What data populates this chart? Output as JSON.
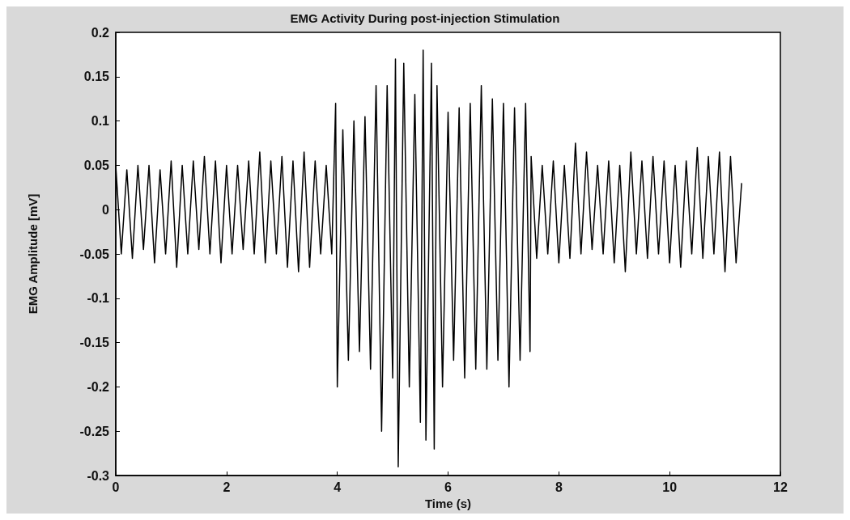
{
  "chart_data": {
    "type": "line",
    "title": "EMG Activity During post-injection Stimulation",
    "xlabel": "Time (s)",
    "ylabel": "EMG Amplitude [mV]",
    "xlim": [
      0,
      12
    ],
    "xticks": [
      0,
      2,
      4,
      6,
      8,
      10,
      12
    ],
    "ylim": [
      -0.3,
      0.2
    ],
    "yticks": [
      -0.3,
      -0.25,
      -0.2,
      -0.15,
      -0.1,
      -0.05,
      0,
      0.05,
      0.1,
      0.15,
      0.2
    ],
    "grid": false,
    "marker": "none",
    "line_style": "solid",
    "series": [
      {
        "color": "#000000",
        "x": [
          0,
          0.1,
          0.2,
          0.3,
          0.4,
          0.5,
          0.6,
          0.7,
          0.8,
          0.9,
          1.0,
          1.1,
          1.2,
          1.3,
          1.4,
          1.5,
          1.6,
          1.7,
          1.8,
          1.9,
          2.0,
          2.1,
          2.2,
          2.3,
          2.4,
          2.5,
          2.6,
          2.7,
          2.8,
          2.9,
          3.0,
          3.1,
          3.2,
          3.3,
          3.4,
          3.5,
          3.6,
          3.7,
          3.8,
          3.9,
          3.97,
          4.0,
          4.1,
          4.2,
          4.3,
          4.4,
          4.5,
          4.6,
          4.7,
          4.8,
          4.9,
          5.0,
          5.05,
          5.1,
          5.2,
          5.3,
          5.4,
          5.5,
          5.55,
          5.6,
          5.7,
          5.75,
          5.8,
          5.9,
          6.0,
          6.1,
          6.2,
          6.3,
          6.4,
          6.5,
          6.6,
          6.7,
          6.8,
          6.9,
          7.0,
          7.1,
          7.2,
          7.3,
          7.4,
          7.48,
          7.5,
          7.6,
          7.7,
          7.8,
          7.9,
          8.0,
          8.1,
          8.2,
          8.3,
          8.4,
          8.5,
          8.6,
          8.7,
          8.8,
          8.9,
          9.0,
          9.1,
          9.2,
          9.3,
          9.4,
          9.5,
          9.6,
          9.7,
          9.8,
          9.9,
          10.0,
          10.1,
          10.2,
          10.3,
          10.4,
          10.5,
          10.6,
          10.7,
          10.8,
          10.9,
          11.0,
          11.1,
          11.2,
          11.3
        ],
        "values": [
          0.05,
          -0.05,
          0.045,
          -0.055,
          0.05,
          -0.045,
          0.05,
          -0.06,
          0.045,
          -0.05,
          0.055,
          -0.065,
          0.05,
          -0.05,
          0.055,
          -0.045,
          0.06,
          -0.05,
          0.055,
          -0.06,
          0.05,
          -0.05,
          0.05,
          -0.045,
          0.055,
          -0.05,
          0.065,
          -0.06,
          0.055,
          -0.05,
          0.06,
          -0.065,
          0.055,
          -0.07,
          0.065,
          -0.065,
          0.055,
          -0.05,
          0.05,
          -0.05,
          0.12,
          -0.2,
          0.09,
          -0.17,
          0.1,
          -0.16,
          0.105,
          -0.18,
          0.14,
          -0.25,
          0.14,
          -0.19,
          0.17,
          -0.29,
          0.165,
          -0.2,
          0.13,
          -0.24,
          0.18,
          -0.26,
          0.165,
          -0.27,
          0.14,
          -0.2,
          0.11,
          -0.17,
          0.115,
          -0.19,
          0.12,
          -0.18,
          0.14,
          -0.18,
          0.125,
          -0.17,
          0.12,
          -0.2,
          0.115,
          -0.17,
          0.12,
          -0.16,
          0.06,
          -0.055,
          0.05,
          -0.05,
          0.055,
          -0.06,
          0.05,
          -0.055,
          0.075,
          -0.05,
          0.065,
          -0.045,
          0.05,
          -0.05,
          0.055,
          -0.06,
          0.05,
          -0.07,
          0.065,
          -0.05,
          0.055,
          -0.055,
          0.06,
          -0.05,
          0.055,
          -0.06,
          0.05,
          -0.065,
          0.055,
          -0.05,
          0.07,
          -0.055,
          0.06,
          -0.05,
          0.065,
          -0.07,
          0.06,
          -0.06,
          0.03
        ]
      }
    ]
  }
}
